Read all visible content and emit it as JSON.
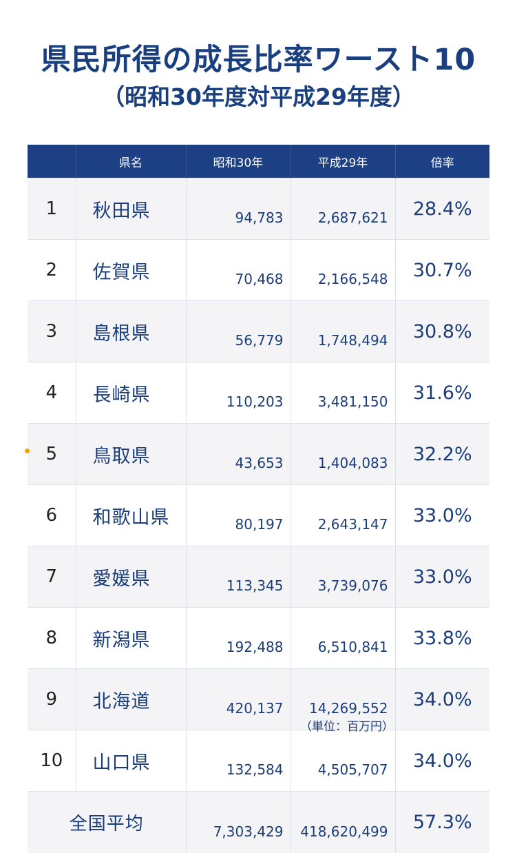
{
  "title": "県民所得の成長比率ワースト10",
  "subtitle": "（昭和30年度対平成29年度）",
  "unit_note": "（単位：百万円）",
  "chart_data": {
    "type": "table",
    "columns": [
      "",
      "県名",
      "昭和30年",
      "平成29年",
      "倍率"
    ],
    "rows": [
      {
        "rank": "1",
        "pref": "秋田県",
        "s30": "94,783",
        "h29": "2,687,621",
        "ratio": "28.4%"
      },
      {
        "rank": "2",
        "pref": "佐賀県",
        "s30": "70,468",
        "h29": "2,166,548",
        "ratio": "30.7%"
      },
      {
        "rank": "3",
        "pref": "島根県",
        "s30": "56,779",
        "h29": "1,748,494",
        "ratio": "30.8%"
      },
      {
        "rank": "4",
        "pref": "長崎県",
        "s30": "110,203",
        "h29": "3,481,150",
        "ratio": "31.6%"
      },
      {
        "rank": "5",
        "pref": "鳥取県",
        "s30": "43,653",
        "h29": "1,404,083",
        "ratio": "32.2%"
      },
      {
        "rank": "6",
        "pref": "和歌山県",
        "s30": "80,197",
        "h29": "2,643,147",
        "ratio": "33.0%"
      },
      {
        "rank": "7",
        "pref": "愛媛県",
        "s30": "113,345",
        "h29": "3,739,076",
        "ratio": "33.0%"
      },
      {
        "rank": "8",
        "pref": "新潟県",
        "s30": "192,488",
        "h29": "6,510,841",
        "ratio": "33.8%"
      },
      {
        "rank": "9",
        "pref": "北海道",
        "s30": "420,137",
        "h29": "14,269,552",
        "ratio": "34.0%"
      },
      {
        "rank": "10",
        "pref": "山口県",
        "s30": "132,584",
        "h29": "4,505,707",
        "ratio": "34.0%"
      }
    ],
    "total": {
      "label": "全国平均",
      "s30": "7,303,429",
      "h29": "418,620,499",
      "ratio": "57.3%"
    }
  },
  "colors": {
    "header_bg": "#1d3f84",
    "text": "#1a3d7a",
    "row_alt": "#f4f4f6",
    "marker": "#f0a500"
  }
}
